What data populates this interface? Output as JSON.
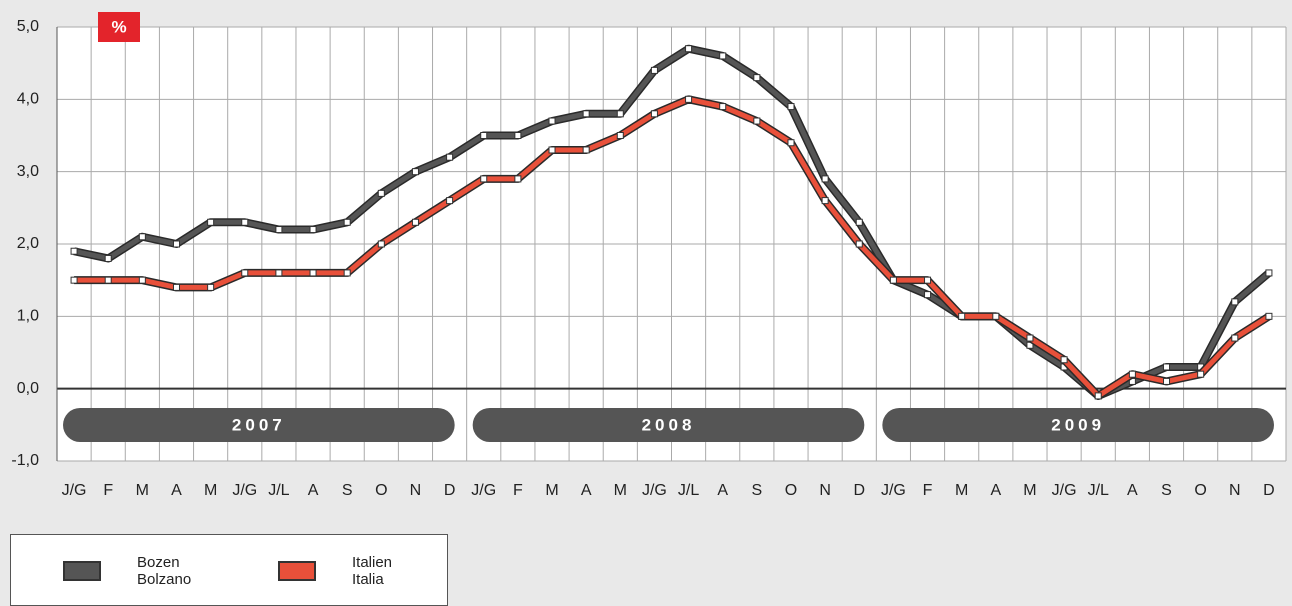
{
  "chart_data": {
    "type": "line",
    "unit_label": "%",
    "categories": [
      "J/G",
      "F",
      "M",
      "A",
      "M",
      "J/G",
      "J/L",
      "A",
      "S",
      "O",
      "N",
      "D",
      "J/G",
      "F",
      "M",
      "A",
      "M",
      "J/G",
      "J/L",
      "A",
      "S",
      "O",
      "N",
      "D",
      "J/G",
      "F",
      "M",
      "A",
      "M",
      "J/G",
      "J/L",
      "A",
      "S",
      "O",
      "N",
      "D"
    ],
    "year_labels": [
      "2007",
      "2008",
      "2009"
    ],
    "series": [
      {
        "name": "Bozen Bolzano",
        "color": "#555555",
        "values": [
          1.9,
          1.8,
          2.1,
          2.0,
          2.3,
          2.3,
          2.2,
          2.2,
          2.3,
          2.7,
          3.0,
          3.2,
          3.5,
          3.5,
          3.7,
          3.8,
          3.8,
          4.4,
          4.7,
          4.6,
          4.3,
          3.9,
          2.9,
          2.3,
          1.5,
          1.3,
          1.0,
          1.0,
          0.6,
          0.3,
          -0.1,
          0.1,
          0.3,
          0.3,
          1.2,
          1.6
        ]
      },
      {
        "name": "Italien Italia",
        "color": "#e8503a",
        "values": [
          1.5,
          1.5,
          1.5,
          1.4,
          1.4,
          1.6,
          1.6,
          1.6,
          1.6,
          2.0,
          2.3,
          2.6,
          2.9,
          2.9,
          3.3,
          3.3,
          3.5,
          3.8,
          4.0,
          3.9,
          3.7,
          3.4,
          2.6,
          2.0,
          1.5,
          1.5,
          1.0,
          1.0,
          0.7,
          0.4,
          -0.1,
          0.2,
          0.1,
          0.2,
          0.7,
          1.0
        ]
      }
    ],
    "ylim": [
      -1,
      5
    ],
    "yticks": [
      {
        "value": -1,
        "label": "-1,0"
      },
      {
        "value": 0,
        "label": "0,0"
      },
      {
        "value": 1,
        "label": "1,0"
      },
      {
        "value": 2,
        "label": "2,0"
      },
      {
        "value": 3,
        "label": "3,0"
      },
      {
        "value": 4,
        "label": "4,0"
      },
      {
        "value": 5,
        "label": "5,0"
      }
    ],
    "grid": true
  }
}
